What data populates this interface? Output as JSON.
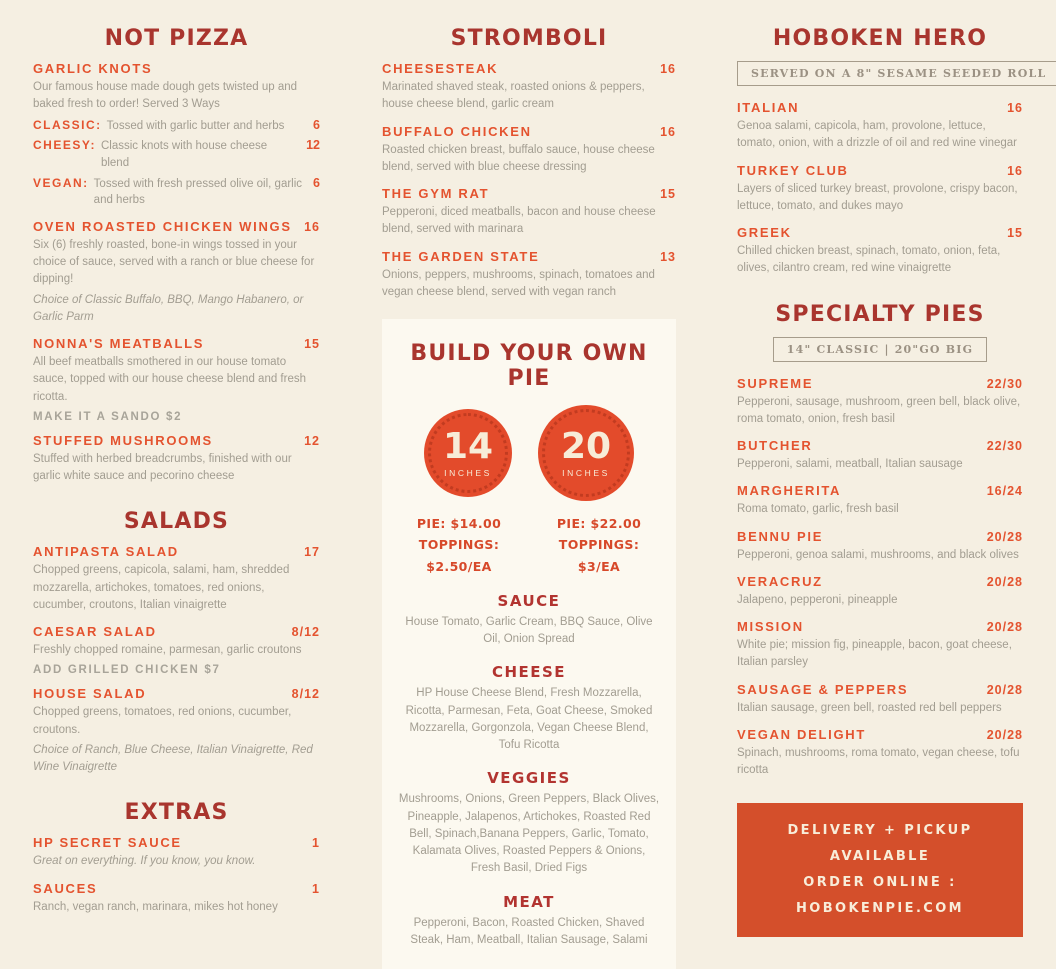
{
  "brand_colors": {
    "background": "#f5efe2",
    "panel_background": "#fcf9f0",
    "heading_red": "#a9352e",
    "item_orange": "#e4532f",
    "body_gray": "#a29d91",
    "badge_orange": "#e34b2b",
    "banner_orange": "#d44f2b",
    "banner_text": "#f8edd9"
  },
  "left": {
    "not_pizza": {
      "title": "NOT PIZZA",
      "garlic_knots": {
        "name": "GARLIC KNOTS",
        "desc": "Our famous house made dough gets twisted up and baked fresh to order! Served 3 Ways",
        "variants": [
          {
            "label": "CLASSIC:",
            "text": "Tossed with garlic butter and herbs",
            "price": "6"
          },
          {
            "label": "CHEESY:",
            "text": "Classic knots with house cheese blend",
            "price": "12"
          },
          {
            "label": "VEGAN:",
            "text": "Tossed with fresh pressed olive oil, garlic and herbs",
            "price": "6"
          }
        ]
      },
      "items": [
        {
          "name": "OVEN ROASTED CHICKEN WINGS",
          "price": "16",
          "desc": "Six (6) freshly roasted, bone-in wings tossed in your choice of sauce, served with a ranch or blue cheese for dipping!",
          "italic": "Choice of Classic Buffalo, BBQ, Mango Habanero, or Garlic Parm"
        },
        {
          "name": "NONNA'S MEATBALLS",
          "price": "15",
          "desc": "All beef meatballs smothered in our house tomato sauce, topped with our house cheese blend and fresh ricotta.",
          "note": "MAKE IT A SANDO $2"
        },
        {
          "name": "STUFFED MUSHROOMS",
          "price": "12",
          "desc": "Stuffed with herbed breadcrumbs, finished with our garlic white sauce and pecorino cheese"
        }
      ]
    },
    "salads": {
      "title": "SALADS",
      "items": [
        {
          "name": "ANTIPASTA SALAD",
          "price": "17",
          "desc": "Chopped greens, capicola, salami, ham, shredded mozzarella, artichokes, tomatoes, red onions, cucumber, croutons, Italian vinaigrette"
        },
        {
          "name": "CAESAR SALAD",
          "price": "8/12",
          "desc": "Freshly chopped romaine, parmesan, garlic croutons",
          "note": "ADD GRILLED CHICKEN $7"
        },
        {
          "name": "HOUSE SALAD",
          "price": "8/12",
          "desc": "Chopped greens, tomatoes, red onions, cucumber, croutons.",
          "italic": "Choice of Ranch, Blue Cheese, Italian Vinaigrette, Red Wine Vinaigrette"
        }
      ]
    },
    "extras": {
      "title": "EXTRAS",
      "items": [
        {
          "name": "HP SECRET SAUCE",
          "price": "1",
          "italic": "Great on everything. If you know, you know."
        },
        {
          "name": "SAUCES",
          "price": "1",
          "desc": "Ranch, vegan ranch, marinara, mikes hot honey"
        }
      ]
    }
  },
  "middle": {
    "stromboli": {
      "title": "STROMBOLI",
      "items": [
        {
          "name": "CHEESESTEAK",
          "price": "16",
          "desc": "Marinated shaved steak, roasted onions & peppers, house cheese blend, garlic cream"
        },
        {
          "name": "BUFFALO CHICKEN",
          "price": "16",
          "desc": "Roasted chicken breast, buffalo sauce, house cheese blend, served with blue cheese dressing"
        },
        {
          "name": "THE GYM RAT",
          "price": "15",
          "desc": "Pepperoni, diced meatballs, bacon and house cheese blend, served with marinara"
        },
        {
          "name": "THE GARDEN STATE",
          "price": "13",
          "desc": "Onions, peppers, mushrooms, spinach, tomatoes and vegan cheese blend, served with vegan ranch"
        }
      ]
    },
    "byop": {
      "title": "BUILD YOUR OWN PIE",
      "sizes": [
        {
          "number": "14",
          "unit": "INCHES",
          "pie": "PIE: $14.00",
          "toppings": "TOPPINGS: $2.50/EA"
        },
        {
          "number": "20",
          "unit": "INCHES",
          "pie": "PIE: $22.00",
          "toppings": "TOPPINGS: $3/EA"
        }
      ],
      "groups": [
        {
          "title": "SAUCE",
          "options": "House Tomato, Garlic Cream, BBQ Sauce, Olive Oil, Onion Spread"
        },
        {
          "title": "CHEESE",
          "options": "HP House Cheese Blend, Fresh Mozzarella, Ricotta, Parmesan, Feta, Goat Cheese, Smoked Mozzarella, Gorgonzola, Vegan Cheese Blend, Tofu Ricotta"
        },
        {
          "title": "VEGGIES",
          "options": "Mushrooms, Onions, Green Peppers, Black Olives, Pineapple, Jalapenos, Artichokes, Roasted Red Bell, Spinach,Banana Peppers, Garlic, Tomato, Kalamata Olives, Roasted Peppers & Onions, Fresh Basil, Dried Figs"
        },
        {
          "title": "MEAT",
          "options": "Pepperoni, Bacon, Roasted Chicken, Shaved Steak, Ham, Meatball, Italian Sausage, Salami"
        }
      ]
    }
  },
  "right": {
    "hero": {
      "title": "HOBOKEN HERO",
      "tag": "SERVED ON A 8\" SESAME SEEDED ROLL",
      "items": [
        {
          "name": "ITALIAN",
          "price": "16",
          "desc": "Genoa salami, capicola, ham, provolone, lettuce, tomato, onion, with a drizzle of oil and red wine vinegar"
        },
        {
          "name": "TURKEY CLUB",
          "price": "16",
          "desc": "Layers of sliced turkey breast, provolone, crispy bacon, lettuce, tomato, and dukes mayo"
        },
        {
          "name": "GREEK",
          "price": "15",
          "desc": "Chilled chicken breast, spinach, tomato, onion, feta, olives, cilantro cream, red wine vinaigrette"
        }
      ]
    },
    "specialty": {
      "title": "SPECIALTY PIES",
      "tag": "14\" CLASSIC  |  20\"GO BIG",
      "items": [
        {
          "name": "SUPREME",
          "price": "22/30",
          "desc": "Pepperoni, sausage, mushroom, green bell, black olive, roma tomato, onion, fresh basil"
        },
        {
          "name": "BUTCHER",
          "price": "22/30",
          "desc": "Pepperoni, salami, meatball, Italian sausage"
        },
        {
          "name": "MARGHERITA",
          "price": "16/24",
          "desc": "Roma tomato, garlic, fresh basil"
        },
        {
          "name": "BENNU PIE",
          "price": "20/28",
          "desc": "Pepperoni, genoa salami, mushrooms, and black olives"
        },
        {
          "name": "VERACRUZ",
          "price": "20/28",
          "desc": "Jalapeno, pepperoni, pineapple"
        },
        {
          "name": "MISSION",
          "price": "20/28",
          "desc": "White pie; mission fig, pineapple, bacon, goat cheese, Italian parsley"
        },
        {
          "name": "SAUSAGE & PEPPERS",
          "price": "20/28",
          "desc": "Italian sausage, green bell, roasted red bell peppers"
        },
        {
          "name": "VEGAN DELIGHT",
          "price": "20/28",
          "desc": "Spinach, mushrooms, roma tomato, vegan cheese, tofu ricotta"
        }
      ]
    },
    "banner": {
      "line1": "DELIVERY + PICKUP AVAILABLE",
      "line2": "ORDER ONLINE : HOBOKENPIE.COM"
    }
  }
}
